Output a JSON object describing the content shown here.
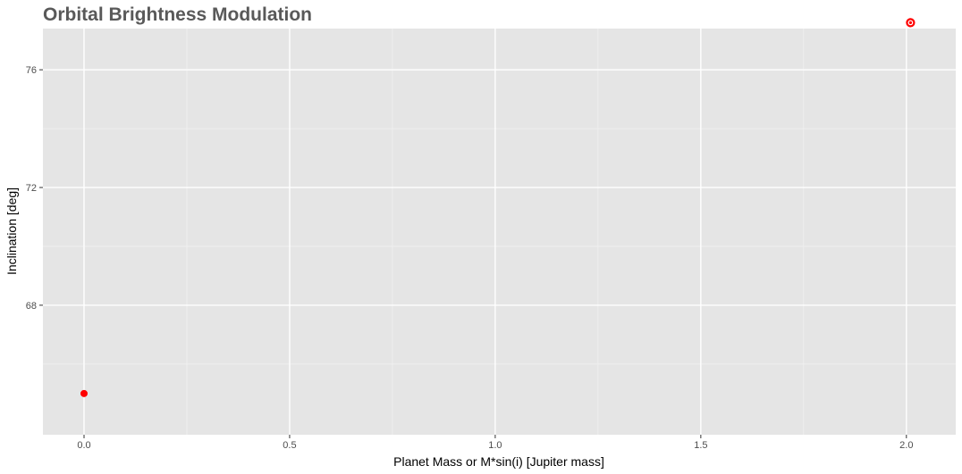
{
  "chart_data": {
    "type": "scatter",
    "title": "Orbital Brightness Modulation",
    "xlabel": "Planet Mass or M*sin(i) [Jupiter mass]",
    "ylabel": "Inclination [deg]",
    "xlim": [
      -0.1,
      2.12
    ],
    "ylim": [
      63.6,
      77.4
    ],
    "x_ticks": [
      0.0,
      0.5,
      1.0,
      1.5,
      2.0
    ],
    "x_tick_labels": [
      "0.0",
      "0.5",
      "1.0",
      "1.5",
      "2.0"
    ],
    "y_ticks": [
      68,
      72,
      76
    ],
    "y_tick_labels": [
      "68",
      "72",
      "76"
    ],
    "grid": true,
    "legend": "none",
    "points": [
      {
        "x": 0.0,
        "y": 65.0,
        "style": "filled"
      },
      {
        "x": 2.01,
        "y": 77.6,
        "style": "ring"
      }
    ]
  },
  "colors": {
    "panel": "#e5e5e5",
    "grid_major": "#ffffff",
    "grid_minor": "#f2f2f2",
    "point": "#ff0000",
    "tick": "#333333"
  }
}
